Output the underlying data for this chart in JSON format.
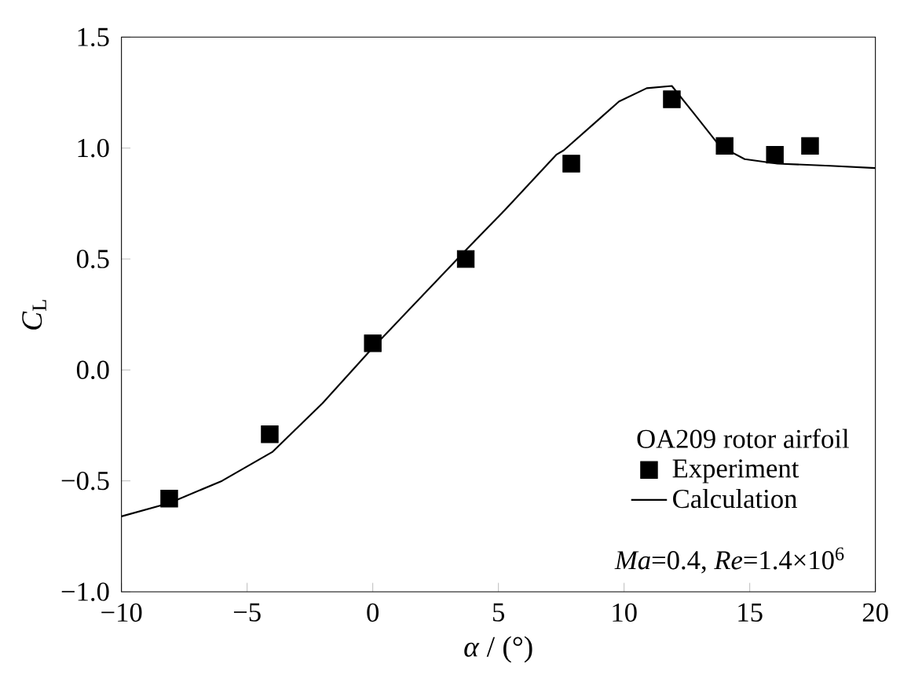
{
  "chart_data": {
    "type": "scatter",
    "xlabel": "*α* / (°)",
    "ylabel": "*C*$_{L}$",
    "legend_title": "OA209 rotor airfoil",
    "legend": "bottom right",
    "annotations": [
      "*Ma*=0.4, *Re*=1.4×10$^{6}$"
    ],
    "xlim": [
      -10,
      20
    ],
    "ylim": [
      -1.0,
      1.5
    ],
    "xticks": [
      {
        "value": -10,
        "label": "−10"
      },
      {
        "value": -5,
        "label": "−5"
      },
      0,
      5,
      10,
      15,
      20
    ],
    "yticks": [
      {
        "value": -1.0,
        "label": "−1.0"
      },
      {
        "value": -0.5,
        "label": "−0.5"
      },
      {
        "value": 0,
        "label": "0.0"
      },
      {
        "value": 0.5,
        "label": "0.5"
      },
      {
        "value": 1.0,
        "label": "1.0"
      },
      {
        "value": 1.5,
        "label": "1.5"
      }
    ],
    "grid": false,
    "series": [
      {
        "name": "Experiment",
        "marker": "square",
        "color": "#000000",
        "x": [
          -8.1,
          -4.1,
          0,
          3.7,
          7.9,
          11.9,
          14.0,
          16.0,
          17.4
        ],
        "values": [
          -0.58,
          -0.29,
          0.12,
          0.5,
          0.93,
          1.22,
          1.01,
          0.97,
          1.01
        ]
      },
      {
        "name": "Calculation",
        "type": "line",
        "marker": "none",
        "line_style": "solid",
        "color": "#000000",
        "x": [
          -10,
          -8.1,
          -6.0,
          -4.0,
          -2.0,
          0,
          3.7,
          5.25,
          7.3,
          7.6,
          9.8,
          10.9,
          11.9,
          12.75,
          13.8,
          14.8,
          16.1,
          18.2,
          20
        ],
        "values": [
          -0.66,
          -0.6,
          -0.5,
          -0.37,
          -0.15,
          0.1,
          0.54,
          0.72,
          0.97,
          0.99,
          1.21,
          1.27,
          1.28,
          1.16,
          1.01,
          0.95,
          0.93,
          0.92,
          0.91
        ]
      }
    ]
  }
}
